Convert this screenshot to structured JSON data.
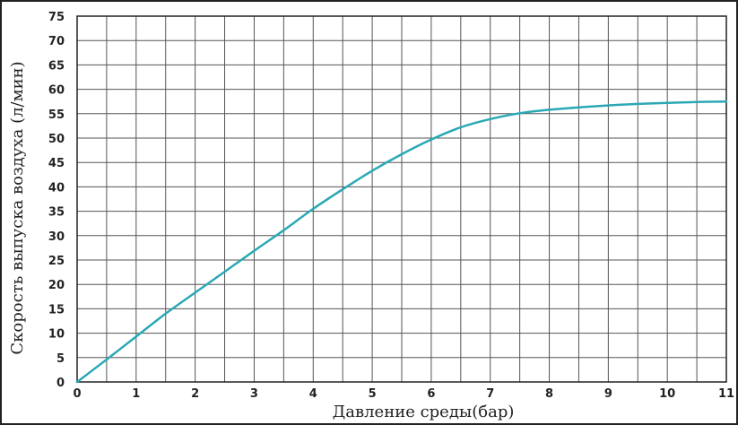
{
  "chart_data": {
    "type": "line",
    "title": "",
    "xlabel": "Давление среды(бар)",
    "ylabel": "Скорость выпуска воздуха (л/мин)",
    "xlim": [
      0,
      11
    ],
    "ylim": [
      0,
      75
    ],
    "x_ticks": [
      "0",
      "1",
      "2",
      "3",
      "4",
      "5",
      "6",
      "7",
      "8",
      "9",
      "10",
      "11"
    ],
    "y_ticks": [
      "0",
      "5",
      "10",
      "15",
      "20",
      "25",
      "30",
      "35",
      "40",
      "45",
      "50",
      "55",
      "60",
      "65",
      "70",
      "75"
    ],
    "x_ticks_values": [
      0,
      1,
      2,
      3,
      4,
      5,
      6,
      7,
      8,
      9,
      10,
      11
    ],
    "y_ticks_values": [
      0,
      5,
      10,
      15,
      20,
      25,
      30,
      35,
      40,
      45,
      50,
      55,
      60,
      65,
      70,
      75
    ],
    "x_minor_step": 0.5,
    "y_minor_step": 5,
    "grid": true,
    "colors": {
      "line": "#2aa9b5",
      "grid": "#555555",
      "axis": "#222222"
    },
    "series": [
      {
        "x": [
          0,
          0.5,
          1,
          1.5,
          2,
          2.5,
          3,
          3.5,
          4,
          4.5,
          5,
          5.5,
          6,
          6.5,
          7,
          7.5,
          8,
          8.5,
          9,
          9.5,
          10,
          10.5,
          11
        ],
        "y": [
          0,
          4.6,
          9.3,
          14,
          18.3,
          22.6,
          26.9,
          31.1,
          35.5,
          39.5,
          43.3,
          46.7,
          49.7,
          52.2,
          53.9,
          55.1,
          55.8,
          56.3,
          56.7,
          57,
          57.2,
          57.4,
          57.5
        ]
      }
    ]
  }
}
